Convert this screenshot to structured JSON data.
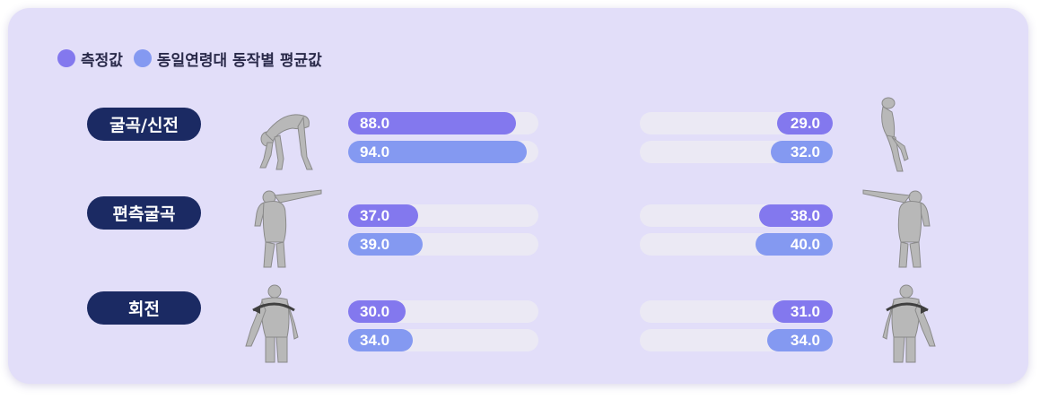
{
  "legend": {
    "measured": "측정값",
    "average": "동일연령대 동작별 평균값"
  },
  "colors": {
    "measured": "#8378ee",
    "average": "#8499f1",
    "track": "#ebe9f4",
    "label_bg": "#1b2a63",
    "card_bg": "#e2def9"
  },
  "chart_data": {
    "type": "bar",
    "categories": [
      "굴곡/신전",
      "편측굴곡",
      "회전"
    ],
    "scale_max": 100,
    "series": [
      {
        "name": "측정값",
        "side": "left",
        "values": [
          88.0,
          37.0,
          30.0
        ]
      },
      {
        "name": "동일연령대 동작별 평균값",
        "side": "left",
        "values": [
          94.0,
          39.0,
          34.0
        ]
      },
      {
        "name": "측정값",
        "side": "right",
        "values": [
          29.0,
          38.0,
          31.0
        ]
      },
      {
        "name": "동일연령대 동작별 평균값",
        "side": "right",
        "values": [
          32.0,
          40.0,
          34.0
        ]
      }
    ]
  },
  "rows": [
    {
      "label": "굴곡/신전",
      "left_measured": "88.0",
      "left_average": "94.0",
      "right_measured": "29.0",
      "right_average": "32.0",
      "left_icon": "forward-bend-figure-icon",
      "right_icon": "back-extension-figure-icon"
    },
    {
      "label": "편측굴곡",
      "left_measured": "37.0",
      "left_average": "39.0",
      "right_measured": "38.0",
      "right_average": "40.0",
      "left_icon": "left-side-bend-figure-icon",
      "right_icon": "right-side-bend-figure-icon"
    },
    {
      "label": "회전",
      "left_measured": "30.0",
      "left_average": "34.0",
      "right_measured": "31.0",
      "right_average": "34.0",
      "left_icon": "left-rotation-figure-icon",
      "right_icon": "right-rotation-figure-icon"
    }
  ]
}
